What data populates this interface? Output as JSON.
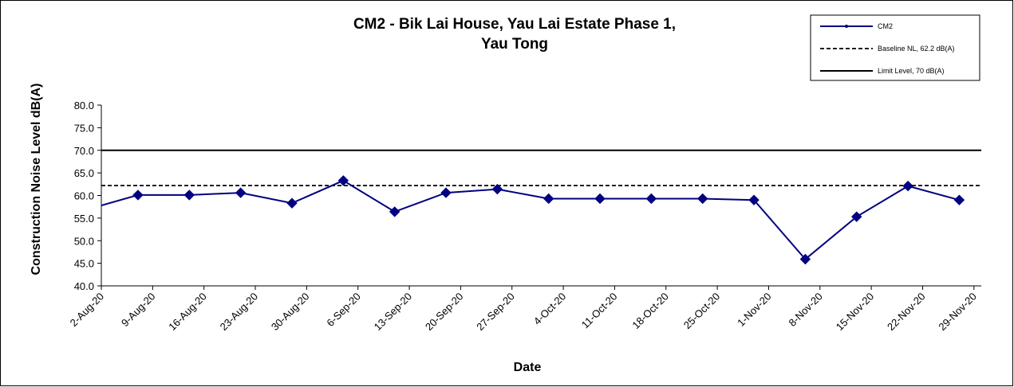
{
  "chart_data": {
    "type": "line",
    "title_line1": "CM2 - Bik Lai House, Yau Lai Estate Phase 1,",
    "title_line2": "Yau Tong",
    "xlabel": "Date",
    "ylabel": "Construction Noise Level  dB(A)",
    "ylim": [
      40,
      80
    ],
    "yticks": [
      "40.0",
      "45.0",
      "50.0",
      "55.0",
      "60.0",
      "65.0",
      "70.0",
      "75.0",
      "80.0"
    ],
    "xlim": [
      "2020-08-02",
      "2020-11-30"
    ],
    "xtick_labels": [
      "2-Aug-20",
      "9-Aug-20",
      "16-Aug-20",
      "23-Aug-20",
      "30-Aug-20",
      "6-Sep-20",
      "13-Sep-20",
      "20-Sep-20",
      "27-Sep-20",
      "4-Oct-20",
      "11-Oct-20",
      "18-Oct-20",
      "25-Oct-20",
      "1-Nov-20",
      "8-Nov-20",
      "15-Nov-20",
      "22-Nov-20",
      "29-Nov-20"
    ],
    "xtick_dates": [
      "2020-08-02",
      "2020-08-09",
      "2020-08-16",
      "2020-08-23",
      "2020-08-30",
      "2020-09-06",
      "2020-09-13",
      "2020-09-20",
      "2020-09-27",
      "2020-10-04",
      "2020-10-11",
      "2020-10-18",
      "2020-10-25",
      "2020-11-01",
      "2020-11-08",
      "2020-11-15",
      "2020-11-22",
      "2020-11-29"
    ],
    "grid": false,
    "legend_position": "top-right",
    "series": [
      {
        "name": "CM2",
        "color": "#000080",
        "x": [
          "2020-08-01",
          "2020-08-07",
          "2020-08-14",
          "2020-08-21",
          "2020-08-28",
          "2020-09-04",
          "2020-09-11",
          "2020-09-18",
          "2020-09-25",
          "2020-10-02",
          "2020-10-09",
          "2020-10-16",
          "2020-10-23",
          "2020-10-30",
          "2020-11-06",
          "2020-11-13",
          "2020-11-20",
          "2020-11-27"
        ],
        "y": [
          57.8,
          60.1,
          60.1,
          60.6,
          58.3,
          63.3,
          56.4,
          60.6,
          61.4,
          59.3,
          59.3,
          59.3,
          59.3,
          59.0,
          45.9,
          55.3,
          62.1,
          59.0
        ]
      }
    ],
    "reference_lines": [
      {
        "name": "Baseline NL, 62.2 dB(A)",
        "value": 62.2,
        "style": "dashed",
        "color": "#000000"
      },
      {
        "name": "Limit Level, 70 dB(A)",
        "value": 70,
        "style": "solid",
        "color": "#000000"
      }
    ]
  }
}
